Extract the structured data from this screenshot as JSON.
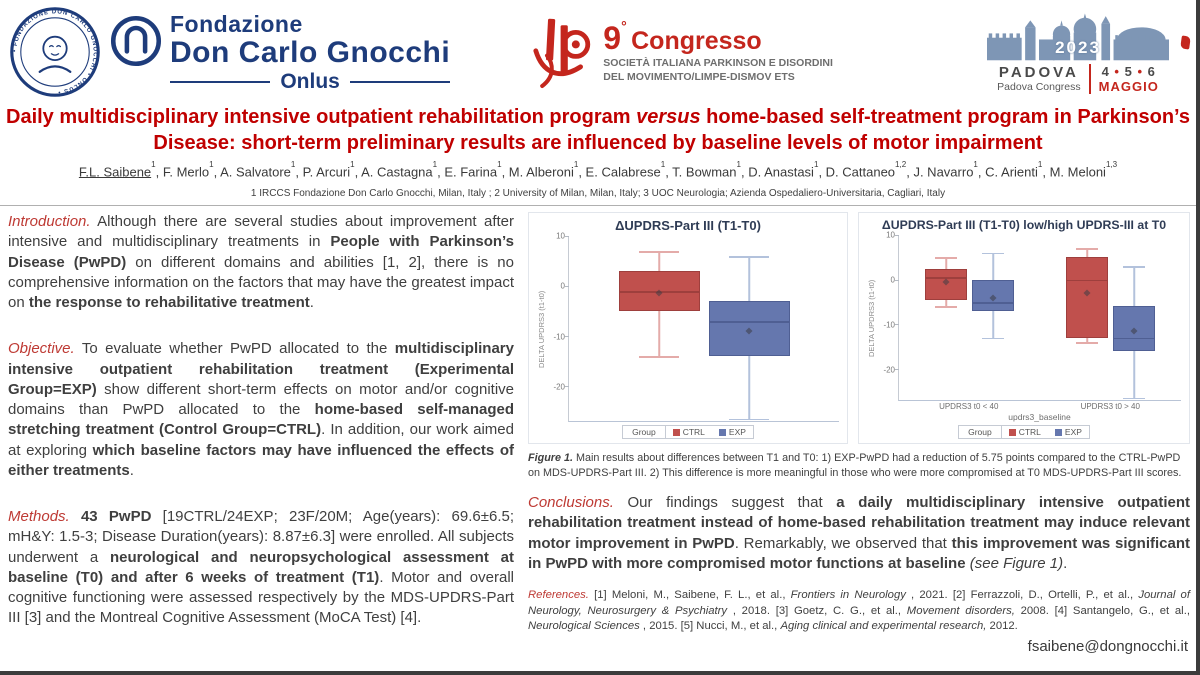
{
  "colors": {
    "title_red": "#c00000",
    "lead_red": "#be3a34",
    "brand_blue": "#1e3c7b",
    "congress_red": "#c4261d",
    "skyline_blue": "#7e96b5",
    "ctrl_red": "#c0504d",
    "exp_blue": "#6577ae"
  },
  "header": {
    "gnocchi": {
      "seal_text": "• FONDAZIONE DON CARLO GNOCCHI • ONLUS •",
      "line1": "Fondazione",
      "line2": "Don Carlo Gnocchi",
      "line3": "Onlus"
    },
    "congress": {
      "num": "9",
      "deg": "°",
      "word": "Congresso",
      "sub1": "SOCIETÀ ITALIANA PARKINSON E DISORDINI",
      "sub2": "DEL MOVIMENTO/LIMPE-DISMOV ETS"
    },
    "padova": {
      "year": "2023",
      "city": "PADOVA",
      "subtitle": "Padova Congress",
      "d1": "4",
      "d2": "5",
      "d3": "6",
      "dot": "•",
      "month": "MAGGIO"
    }
  },
  "title_rich": [
    {
      "t": "Daily multidisciplinary intensive outpatient rehabilitation program "
    },
    {
      "t": "versus",
      "i": true
    },
    {
      "t": " home-based self-treatment program in Parkinson’s Disease: short-term preliminary results are influenced by baseline levels of motor impairment"
    }
  ],
  "authors_rich": [
    {
      "t": "F.L. Saibene",
      "u": true
    },
    {
      "t": "1",
      "sup": true
    },
    {
      "t": ", F. Merlo"
    },
    {
      "t": "1",
      "sup": true
    },
    {
      "t": ", A. Salvatore"
    },
    {
      "t": "1",
      "sup": true
    },
    {
      "t": ", P. Arcuri"
    },
    {
      "t": "1",
      "sup": true
    },
    {
      "t": ", A. Castagna"
    },
    {
      "t": "1",
      "sup": true
    },
    {
      "t": ", E. Farina"
    },
    {
      "t": "1",
      "sup": true
    },
    {
      "t": ", M. Alberoni"
    },
    {
      "t": "1",
      "sup": true
    },
    {
      "t": ", E. Calabrese"
    },
    {
      "t": "1",
      "sup": true
    },
    {
      "t": ", T. Bowman"
    },
    {
      "t": "1",
      "sup": true
    },
    {
      "t": ", D. Anastasi"
    },
    {
      "t": "1",
      "sup": true
    },
    {
      "t": ", D. Cattaneo"
    },
    {
      "t": "1,2",
      "sup": true
    },
    {
      "t": ", J. Navarro"
    },
    {
      "t": "1",
      "sup": true
    },
    {
      "t": ", C. Arienti"
    },
    {
      "t": "1",
      "sup": true
    },
    {
      "t": ", M. Meloni"
    },
    {
      "t": "1,3",
      "sup": true
    }
  ],
  "affiliations": "1 IRCCS Fondazione Don Carlo Gnocchi, Milan, Italy ; 2 University of Milan, Milan, Italy; 3 UOC Neurologia; Azienda Ospedaliero-Universitaria, Cagliari, Italy",
  "intro_rich": [
    {
      "t": "Introduction.",
      "red": true
    },
    {
      "t": " Although there are several studies about improvement after intensive and multidisciplinary treatments in "
    },
    {
      "t": "People with Parkinson’s Disease (PwPD)",
      "b": true
    },
    {
      "t": " on different domains and abilities [1, 2], there is no comprehensive information on the factors that may have the greatest impact on "
    },
    {
      "t": "the response to rehabilitative treatment",
      "b": true
    },
    {
      "t": "."
    }
  ],
  "objective_rich": [
    {
      "t": "Objective.",
      "red": true
    },
    {
      "t": " To evaluate whether PwPD allocated to the "
    },
    {
      "t": "multidisciplinary intensive outpatient rehabilitation treatment (Experimental Group=EXP)",
      "b": true
    },
    {
      "t": " show different short-term effects on motor and/or cognitive domains than PwPD allocated to the "
    },
    {
      "t": "home-based self-managed stretching treatment (Control Group=CTRL)",
      "b": true
    },
    {
      "t": ". In addition, our work aimed at exploring "
    },
    {
      "t": "which baseline factors may have influenced the effects of either treatments",
      "b": true
    },
    {
      "t": "."
    }
  ],
  "methods_rich": [
    {
      "t": "Methods.",
      "red": true
    },
    {
      "t": " "
    },
    {
      "t": "43 PwPD",
      "b": true
    },
    {
      "t": " [19CTRL/24EXP; 23F/20M; Age(years): 69.6±6.5; mH&Y: 1.5-3; Disease Duration(years): 8.87±6.3] were enrolled. All subjects underwent a "
    },
    {
      "t": "neurological and neuropsychological assessment at baseline (T0) and after 6 weeks of treatment (T1)",
      "b": true
    },
    {
      "t": ". Motor and overall cognitive functioning were assessed respectively by the MDS-UPDRS-Part III [3] and the Montreal Cognitive Assessment (MoCA Test) [4]."
    }
  ],
  "figure_caption_rich": [
    {
      "t": "Figure 1.",
      "b": true,
      "i": true
    },
    {
      "t": " Main results about differences between T1 and T0: 1) EXP-PwPD had a reduction of 5.75 points compared to the CTRL-PwPD on MDS-UPDRS-Part III. 2) This difference is more meaningful in those who were more compromised at T0 MDS-UPDRS-Part III scores."
    }
  ],
  "conclusions_rich": [
    {
      "t": "Conclusions.",
      "red": true
    },
    {
      "t": " Our findings suggest that "
    },
    {
      "t": "a daily multidisciplinary intensive outpatient rehabilitation treatment instead of home-based rehabilitation treatment may induce relevant motor improvement in PwPD",
      "b": true
    },
    {
      "t": ". Remarkably, we observed that "
    },
    {
      "t": "this improvement was significant in PwPD with more compromised motor functions at baseline",
      "b": true
    },
    {
      "t": " "
    },
    {
      "t": "(see Figure 1)",
      "i": true
    },
    {
      "t": "."
    }
  ],
  "references_rich": [
    {
      "t": "References.",
      "red": true
    },
    {
      "t": " [1] Meloni, M., Saibene, F. L., et al., "
    },
    {
      "t": "Frontiers in Neurology",
      "i": true
    },
    {
      "t": " , 2021. [2] Ferrazzoli, D., Ortelli, P., et al., "
    },
    {
      "t": "Journal of Neurology, Neurosurgery & Psychiatry",
      "i": true
    },
    {
      "t": " , 2018. [3] Goetz, C. G., et al., "
    },
    {
      "t": "Movement disorders,",
      "i": true
    },
    {
      "t": " 2008. [4] Santangelo, G., et al., "
    },
    {
      "t": "Neurological Sciences",
      "i": true
    },
    {
      "t": " , 2015. [5] Nucci, M., et al., "
    },
    {
      "t": "Aging clinical and experimental research,",
      "i": true
    },
    {
      "t": " 2012."
    }
  ],
  "email": "fsaibene@dongnocchi.it",
  "chart_data": [
    {
      "type": "boxplot",
      "title": "ΔUPDRS-Part III (T1-T0)",
      "ylabel": "DELTA UPDRS3 (t1-t0)",
      "xlabel": "",
      "ylim": [
        -27,
        10
      ],
      "yticks": [
        10,
        0,
        -10,
        -20
      ],
      "grid": false,
      "legend": {
        "label": "Group",
        "position": "bottom",
        "items": [
          {
            "name": "CTRL",
            "color": "#c0504d",
            "border": "#9e3f3d",
            "light": "#e4aba9"
          },
          {
            "name": "EXP",
            "color": "#6577ae",
            "border": "#4f5f93",
            "light": "#b3c2dc"
          }
        ]
      },
      "groups": [
        {
          "label": "",
          "boxes": [
            {
              "series": "CTRL",
              "low": -14,
              "q1": -5,
              "median": -1,
              "q3": 3,
              "high": 7,
              "mean": -1.3
            },
            {
              "series": "EXP",
              "low": -26.5,
              "q1": -14,
              "median": -7,
              "q3": -3,
              "high": 6,
              "mean": -9
            }
          ]
        }
      ]
    },
    {
      "type": "boxplot",
      "title": "ΔUPDRS-Part III (T1-T0) low/high UPDRS-III at T0",
      "ylabel": "DELTA UPDRS3 (t1-t0)",
      "xlabel": "updrs3_baseline",
      "ylim": [
        -27,
        10
      ],
      "yticks": [
        10,
        0,
        -10,
        -20
      ],
      "grid": false,
      "legend": {
        "label": "Group",
        "position": "bottom",
        "items": [
          {
            "name": "CTRL",
            "color": "#c0504d",
            "border": "#9e3f3d",
            "light": "#e4aba9"
          },
          {
            "name": "EXP",
            "color": "#6577ae",
            "border": "#4f5f93",
            "light": "#b3c2dc"
          }
        ]
      },
      "groups": [
        {
          "label": "UPDRS3 t0 < 40",
          "boxes": [
            {
              "series": "CTRL",
              "low": -6,
              "q1": -4.5,
              "median": 0.5,
              "q3": 2.5,
              "high": 5,
              "mean": -0.5
            },
            {
              "series": "EXP",
              "low": -13,
              "q1": -7,
              "median": -5,
              "q3": 0,
              "high": 6,
              "mean": -4
            }
          ]
        },
        {
          "label": "UPDRS3 t0 > 40",
          "boxes": [
            {
              "series": "CTRL",
              "low": -14,
              "q1": -13,
              "median": 0,
              "q3": 5,
              "high": 7,
              "mean": -3
            },
            {
              "series": "EXP",
              "low": -26.5,
              "q1": -16,
              "median": -13,
              "q3": -6,
              "high": 3,
              "mean": -11.5
            }
          ]
        }
      ]
    }
  ]
}
